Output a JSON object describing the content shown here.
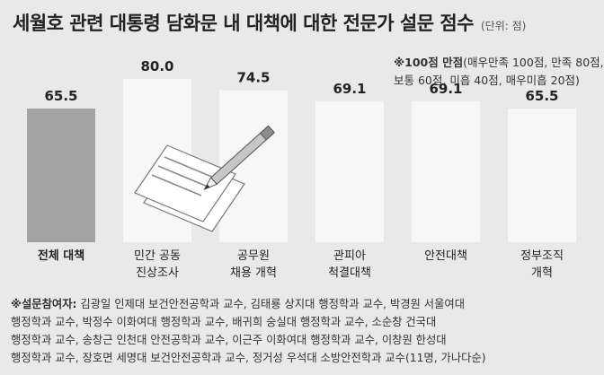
{
  "header": {
    "title": "세월호 관련 대통령 담화문 내 대책에 대한 전문가 설문 점수",
    "unit": "(단위: 점)"
  },
  "note": {
    "line1_bold": "※100점 만점",
    "line1_rest": "(매우만족 100점, 만족 80점,",
    "line2": "보통 60점, 미흡 40점, 매우미흡 20점)"
  },
  "chart_data": {
    "type": "bar",
    "categories": [
      [
        "전체 대책"
      ],
      [
        "민간 공동",
        "진상조사"
      ],
      [
        "공무원",
        "채용 개혁"
      ],
      [
        "관피아",
        "척결대책"
      ],
      [
        "안전대책"
      ],
      [
        "정부조직",
        "개혁"
      ]
    ],
    "values": [
      65.5,
      80.0,
      74.5,
      69.1,
      69.1,
      65.5
    ],
    "value_labels": [
      "65.5",
      "80.0",
      "74.5",
      "69.1",
      "69.1",
      "65.5"
    ],
    "ylim": [
      0,
      100
    ],
    "highlight_index": 0,
    "colors": {
      "highlight": "#a3a3a3",
      "bar": "#f7f7f7",
      "text": "#222222"
    }
  },
  "footer": {
    "lead": "※설문참여자:",
    "lines": [
      " 김광일 인제대 보건안전공학과 교수, 김태룡 상지대 행정학과 교수, 박경원 서울여대",
      "행정학과 교수, 박정수 이화여대 행정학과 교수, 배귀희 숭실대 행정학과 교수, 소순창 건국대",
      "행정학과 교수, 송창근 인천대 안전공학과 교수, 이근주 이화여대 행정학과 교수, 이창원 한성대",
      "행정학과 교수, 장호면 세명대 보건안전공학과 교수, 정거성 우석대 소방안전학과 교수(11명, 가나다순)"
    ]
  }
}
